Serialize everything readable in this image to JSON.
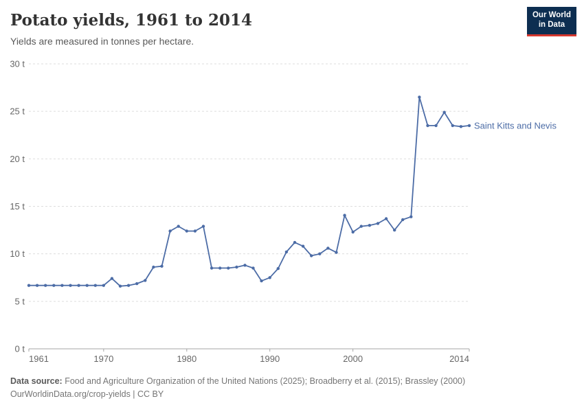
{
  "header": {
    "title": "Potato yields, 1961 to 2014",
    "subtitle": "Yields are measured in tonnes per hectare.",
    "logo": {
      "line1": "Our World",
      "line2": "in Data"
    }
  },
  "chart_data": {
    "type": "line",
    "title": "Potato yields, 1961 to 2014",
    "subtitle": "Yields are measured in tonnes per hectare.",
    "ylabel": "tonnes per hectare",
    "unit_suffix": " t",
    "xlim": [
      1961,
      2014
    ],
    "ylim": [
      0,
      30
    ],
    "yticks": [
      0,
      5,
      10,
      15,
      20,
      25,
      30
    ],
    "xticks": [
      1961,
      1970,
      1980,
      1990,
      2000,
      2014
    ],
    "grid": "horizontal-dashed",
    "legend_position": "right-end-label",
    "series": [
      {
        "name": "Saint Kitts and Nevis",
        "color": "#4C6CA6",
        "x": [
          1961,
          1962,
          1963,
          1964,
          1965,
          1966,
          1967,
          1968,
          1969,
          1970,
          1971,
          1972,
          1973,
          1974,
          1975,
          1976,
          1977,
          1978,
          1979,
          1980,
          1981,
          1982,
          1983,
          1984,
          1985,
          1986,
          1987,
          1988,
          1989,
          1990,
          1991,
          1992,
          1993,
          1994,
          1995,
          1996,
          1997,
          1998,
          1999,
          2000,
          2001,
          2002,
          2003,
          2004,
          2005,
          2006,
          2007,
          2008,
          2009,
          2010,
          2011,
          2012,
          2013,
          2014
        ],
        "values": [
          6.67,
          6.67,
          6.67,
          6.67,
          6.67,
          6.67,
          6.67,
          6.67,
          6.67,
          6.67,
          7.4,
          6.6,
          6.67,
          6.86,
          7.2,
          8.6,
          8.7,
          12.4,
          12.9,
          12.4,
          12.4,
          12.9,
          8.5,
          8.5,
          8.5,
          8.6,
          8.8,
          8.5,
          7.15,
          7.5,
          8.45,
          10.2,
          11.2,
          10.8,
          9.8,
          10.0,
          10.6,
          10.15,
          14.05,
          12.3,
          12.9,
          13.0,
          13.2,
          13.7,
          12.5,
          13.6,
          13.9,
          26.5,
          23.5,
          23.5,
          24.9,
          23.5,
          23.4,
          23.5
        ]
      }
    ]
  },
  "footer": {
    "datasource_label": "Data source:",
    "datasource_text": " Food and Agriculture Organization of the United Nations (2025); Broadberry et al. (2015); Brassley (2000)",
    "attribution": "OurWorldinData.org/crop-yields | CC BY"
  },
  "colors": {
    "line": "#4C6CA6",
    "entity_label": "#4C6CA6",
    "grid": "#dddddd",
    "axis": "#a5a5a5",
    "tick_text": "#666666",
    "title_text": "#333333",
    "subtitle_text": "#595959",
    "footer_text": "#757575",
    "logo_bg": "#0d2e51",
    "logo_stripe": "#d6372e"
  }
}
